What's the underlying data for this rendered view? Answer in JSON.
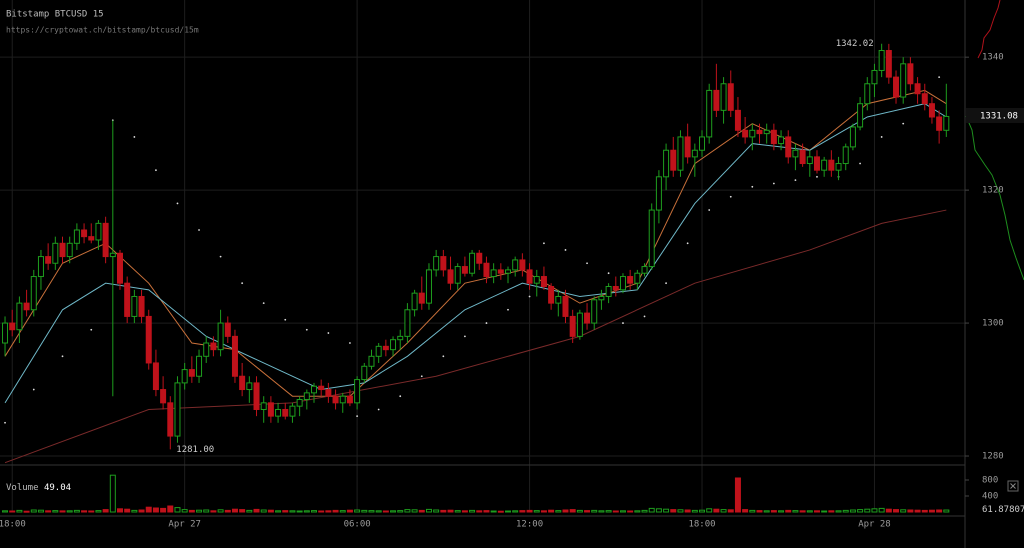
{
  "header": {
    "title": "Bitstamp BTCUSD 15",
    "subtitle": "https://cryptowat.ch/bitstamp/btcusd/15m"
  },
  "chart_data": {
    "type": "candlestick",
    "up_color": "#1e9e1e",
    "down_color": "#c0121b",
    "grid": true,
    "xlim": [
      -0.7,
      133.6
    ],
    "ylim": [
      1279.1,
      1348.6
    ],
    "yticks": [
      1280,
      1300,
      1320,
      1340
    ],
    "xticks": [
      {
        "value": 1,
        "label": "18:00"
      },
      {
        "value": 25,
        "label": "Apr 27"
      },
      {
        "value": 49,
        "label": "06:00"
      },
      {
        "value": 73,
        "label": "12:00"
      },
      {
        "value": 97,
        "label": "18:00"
      },
      {
        "value": 121,
        "label": "Apr 28"
      }
    ],
    "x": [
      0,
      1,
      2,
      3,
      4,
      5,
      6,
      7,
      8,
      9,
      10,
      11,
      12,
      13,
      14,
      15,
      16,
      17,
      18,
      19,
      20,
      21,
      22,
      23,
      24,
      25,
      26,
      27,
      28,
      29,
      30,
      31,
      32,
      33,
      34,
      35,
      36,
      37,
      38,
      39,
      40,
      41,
      42,
      43,
      44,
      45,
      46,
      47,
      48,
      49,
      50,
      51,
      52,
      53,
      54,
      55,
      56,
      57,
      58,
      59,
      60,
      61,
      62,
      63,
      64,
      65,
      66,
      67,
      68,
      69,
      70,
      71,
      72,
      73,
      74,
      75,
      76,
      77,
      78,
      79,
      80,
      81,
      82,
      83,
      84,
      85,
      86,
      87,
      88,
      89,
      90,
      91,
      92,
      93,
      94,
      95,
      96,
      97,
      98,
      99,
      100,
      101,
      102,
      103,
      104,
      105,
      106,
      107,
      108,
      109,
      110,
      111,
      112,
      113,
      114,
      115,
      116,
      117,
      118,
      119,
      120,
      121,
      122,
      123,
      124,
      125,
      126,
      127,
      128,
      129,
      130,
      131
    ],
    "open": [
      1297,
      1300,
      1299,
      1303,
      1302,
      1307,
      1310,
      1309,
      1312,
      1310,
      1312,
      1314,
      1313,
      1312.5,
      1315,
      1310,
      1310.5,
      1306,
      1301,
      1304,
      1301,
      1294,
      1290,
      1288,
      1283,
      1291,
      1293,
      1292,
      1295,
      1297,
      1296,
      1300,
      1298,
      1292,
      1290,
      1291,
      1287,
      1288,
      1286,
      1287,
      1286,
      1287.5,
      1288.5,
      1289.5,
      1290.5,
      1290,
      1289,
      1288,
      1289,
      1288,
      1291.5,
      1293.5,
      1295,
      1296.5,
      1296,
      1297.5,
      1298,
      1302,
      1304.5,
      1303,
      1308,
      1310,
      1308,
      1306,
      1308.5,
      1307.5,
      1310.5,
      1309,
      1307,
      1308,
      1307.5,
      1308,
      1309.5,
      1308,
      1306,
      1307,
      1305.5,
      1303,
      1304,
      1301,
      1298,
      1301.5,
      1300,
      1303.5,
      1304,
      1305.5,
      1305,
      1307,
      1306,
      1307.5,
      1308.5,
      1317,
      1322,
      1326,
      1323,
      1328,
      1325,
      1326,
      1328,
      1335,
      1332,
      1336,
      1332,
      1329,
      1328,
      1329,
      1328.5,
      1329,
      1327,
      1328,
      1325,
      1326,
      1324,
      1325,
      1323,
      1324.5,
      1323,
      1324,
      1326.5,
      1329.5,
      1333,
      1336,
      1338,
      1341,
      1337,
      1334,
      1339,
      1336,
      1334.5,
      1333,
      1331,
      1329
    ],
    "high": [
      1301,
      1302,
      1304,
      1305,
      1308,
      1311,
      1312,
      1313,
      1313,
      1313,
      1315,
      1315,
      1315,
      1315.5,
      1316,
      1330.5,
      1311,
      1307,
      1305,
      1305,
      1302,
      1296,
      1292,
      1289,
      1292,
      1294,
      1295,
      1296,
      1298,
      1298,
      1302,
      1301,
      1299,
      1294,
      1292,
      1292,
      1289,
      1289,
      1288,
      1288,
      1288,
      1289,
      1290,
      1291,
      1291.5,
      1291,
      1290,
      1289.5,
      1290,
      1292,
      1294,
      1296,
      1297,
      1297.5,
      1298,
      1299,
      1303,
      1305,
      1307,
      1309,
      1311,
      1311,
      1310,
      1309,
      1310,
      1311,
      1311,
      1310,
      1309,
      1309,
      1308.5,
      1310,
      1310.5,
      1309,
      1308,
      1308.5,
      1306,
      1305,
      1305,
      1302,
      1302,
      1303,
      1304,
      1305,
      1306,
      1307,
      1307.5,
      1308,
      1308,
      1309,
      1318,
      1323,
      1327,
      1328,
      1329,
      1330,
      1327,
      1329,
      1336,
      1339,
      1337,
      1338,
      1334,
      1331,
      1330,
      1330,
      1330,
      1330,
      1329,
      1329,
      1327,
      1327,
      1326,
      1326,
      1325,
      1326,
      1325,
      1327,
      1330,
      1334,
      1337,
      1339,
      1342.02,
      1342,
      1338,
      1340,
      1340,
      1337,
      1336,
      1334,
      1332,
      1336
    ],
    "low": [
      1295,
      1298,
      1297,
      1301,
      1301,
      1305,
      1308,
      1308,
      1309,
      1309,
      1311,
      1312,
      1312,
      1311,
      1309,
      1289,
      1305,
      1300,
      1300,
      1300,
      1293,
      1289,
      1287,
      1281,
      1282,
      1290,
      1291,
      1291,
      1294,
      1295,
      1295,
      1297,
      1291,
      1289,
      1288,
      1286,
      1285,
      1285,
      1285,
      1285.5,
      1285,
      1286,
      1287,
      1288,
      1289,
      1288,
      1287,
      1286.5,
      1287.5,
      1287,
      1291,
      1293,
      1294,
      1295,
      1295,
      1296,
      1297,
      1301,
      1302,
      1302,
      1307,
      1307,
      1305,
      1305,
      1307,
      1307,
      1308,
      1306,
      1306,
      1306.5,
      1306,
      1307,
      1307,
      1305,
      1304,
      1305,
      1302,
      1301,
      1300,
      1297,
      1297.5,
      1299,
      1299,
      1302,
      1303,
      1304,
      1304.5,
      1305,
      1305,
      1307,
      1308,
      1315,
      1320,
      1322,
      1322,
      1324,
      1322,
      1325,
      1327,
      1331,
      1330,
      1331,
      1328,
      1327,
      1326,
      1327,
      1327,
      1326,
      1326,
      1324,
      1323,
      1323.5,
      1322,
      1322.5,
      1322,
      1322,
      1321.5,
      1323,
      1326,
      1329,
      1332,
      1334,
      1337,
      1336,
      1333,
      1333,
      1335,
      1333,
      1332,
      1330,
      1327,
      1328
    ],
    "close": [
      1300,
      1299,
      1303,
      1302,
      1307,
      1310,
      1309,
      1312,
      1310,
      1312,
      1314,
      1313,
      1312.5,
      1315,
      1310,
      1310.5,
      1306,
      1301,
      1304,
      1301,
      1294,
      1290,
      1288,
      1283,
      1291,
      1293,
      1292,
      1295,
      1297,
      1296,
      1300,
      1298,
      1292,
      1290,
      1291,
      1287,
      1288,
      1286,
      1287,
      1286,
      1287.5,
      1288.5,
      1289.5,
      1290.5,
      1290,
      1289,
      1288,
      1289,
      1288,
      1291.5,
      1293.5,
      1295,
      1296.5,
      1296,
      1297.5,
      1298,
      1302,
      1304.5,
      1303,
      1308,
      1310,
      1308,
      1306,
      1308.5,
      1307.5,
      1310.5,
      1309,
      1307,
      1308,
      1307.5,
      1308,
      1309.5,
      1308,
      1306,
      1307,
      1305.5,
      1303,
      1304,
      1301,
      1298,
      1301.5,
      1300,
      1303.5,
      1304,
      1305.5,
      1305,
      1307,
      1306,
      1307.5,
      1308.5,
      1317,
      1322,
      1326,
      1323,
      1328,
      1325,
      1326,
      1328,
      1335,
      1332,
      1336,
      1332,
      1329,
      1328,
      1329,
      1328.5,
      1329,
      1327,
      1328,
      1325,
      1326,
      1324,
      1325,
      1323,
      1324.5,
      1323,
      1324,
      1326.5,
      1329.5,
      1333,
      1336,
      1338,
      1341,
      1337,
      1334,
      1339,
      1336,
      1334.5,
      1333,
      1331,
      1329,
      1331.08
    ],
    "volume": [
      30,
      25,
      40,
      20,
      50,
      45,
      30,
      35,
      28,
      30,
      40,
      30,
      25,
      35,
      60,
      920,
      80,
      70,
      40,
      50,
      120,
      100,
      90,
      150,
      110,
      60,
      40,
      45,
      50,
      30,
      55,
      40,
      70,
      60,
      40,
      65,
      50,
      45,
      30,
      35,
      30,
      25,
      30,
      35,
      25,
      30,
      40,
      35,
      45,
      50,
      40,
      35,
      30,
      25,
      30,
      35,
      60,
      55,
      40,
      65,
      50,
      40,
      45,
      35,
      30,
      40,
      30,
      35,
      25,
      20,
      25,
      30,
      35,
      40,
      35,
      30,
      45,
      35,
      50,
      60,
      40,
      35,
      40,
      30,
      35,
      25,
      30,
      25,
      30,
      40,
      90,
      80,
      70,
      60,
      55,
      50,
      40,
      45,
      80,
      70,
      60,
      55,
      850,
      60,
      40,
      35,
      30,
      35,
      30,
      40,
      35,
      30,
      30,
      30,
      25,
      30,
      30,
      40,
      50,
      60,
      70,
      80,
      90,
      70,
      60,
      55,
      50,
      45,
      40,
      45,
      50,
      49.04
    ],
    "volume_title": "Volume",
    "volume_ylim": [
      0,
      1100
    ],
    "volume_ticks": [
      400,
      800
    ],
    "volume_marker": {
      "value": 61.87807,
      "label": "61.878070"
    },
    "high_label": {
      "x": 122,
      "value": 1342.02,
      "label": "1342.02"
    },
    "low_label": {
      "x": 23,
      "value": 1281,
      "label": "1281.00"
    },
    "series": [
      {
        "style": "line",
        "color": "#c8703a",
        "x": [
          0,
          8,
          14,
          20,
          26,
          32,
          40,
          48,
          56,
          64,
          72,
          80,
          88,
          96,
          104,
          112,
          120,
          128,
          131
        ],
        "values": [
          1295,
          1309,
          1312,
          1306,
          1297,
          1296,
          1289,
          1289,
          1297,
          1306,
          1308,
          1303,
          1306,
          1324,
          1330,
          1326,
          1333,
          1335,
          1333
        ]
      },
      {
        "style": "line",
        "color": "#6fb8c8",
        "x": [
          0,
          8,
          14,
          20,
          28,
          36,
          44,
          50,
          56,
          64,
          72,
          80,
          88,
          96,
          104,
          112,
          120,
          128,
          131
        ],
        "values": [
          1288,
          1302,
          1306,
          1305,
          1298,
          1294,
          1290,
          1291,
          1295,
          1302,
          1306,
          1304,
          1305,
          1318,
          1327,
          1326,
          1331,
          1333,
          1331
        ]
      },
      {
        "style": "line",
        "color": "#7a2a2a",
        "x": [
          0,
          20,
          40,
          60,
          80,
          96,
          112,
          122,
          131
        ],
        "values": [
          1279,
          1287,
          1288,
          1292,
          1298,
          1306,
          1311,
          1315,
          1317
        ]
      },
      {
        "style": "dots",
        "color": "#dddddd",
        "x": [
          0,
          4,
          8,
          12,
          15,
          18,
          21,
          24,
          27,
          30,
          33,
          36,
          39,
          42,
          45,
          48,
          49,
          52,
          55,
          58,
          61,
          64,
          67,
          70,
          73,
          75,
          78,
          81,
          84,
          86,
          89,
          92,
          95,
          98,
          101,
          104,
          107,
          110,
          113,
          116,
          119,
          122,
          125,
          128,
          130
        ],
        "values": [
          1285,
          1290,
          1295,
          1299,
          1330.5,
          1328,
          1323,
          1318,
          1314,
          1310,
          1306,
          1303,
          1300.5,
          1299,
          1298.5,
          1297,
          1286,
          1287,
          1289,
          1292,
          1295,
          1298,
          1300,
          1302,
          1304,
          1312,
          1311,
          1309,
          1307.5,
          1300,
          1301,
          1306,
          1312,
          1317,
          1319,
          1320.5,
          1321,
          1321.5,
          1322,
          1322,
          1324,
          1328,
          1330,
          1333,
          1337
        ]
      }
    ]
  }
}
